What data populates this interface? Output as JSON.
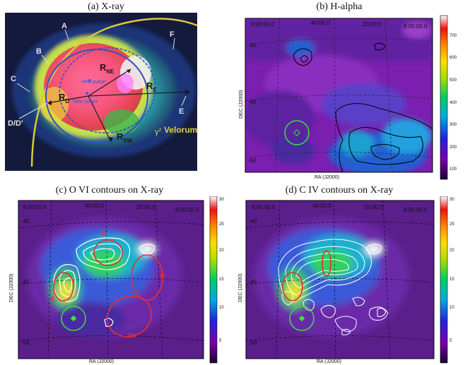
{
  "panels": {
    "a": {
      "title": "(a) X-ray",
      "labels": {
        "A": "A",
        "B": "B",
        "C": "C",
        "F": "F",
        "E": "E",
        "DD": "D/D'",
        "RNE": "R",
        "RNE_sub": "NE",
        "RD": "R",
        "RD_sub": "D",
        "RE": "R",
        "RE_sub": "E",
        "RSW": "R",
        "RSW_sub": "SW",
        "pulsar": "Vela pulsar",
        "center": "Vela center",
        "gamma": "γ",
        "gamma_sup": "2",
        "velorum": "Velorum"
      }
    },
    "b": {
      "title": "(b) H-alpha",
      "ra_ticks": [
        "9:00:00.0",
        "40:00.0",
        "20:00.0",
        "8:00:00.0"
      ],
      "dec_ticks": [
        "-40",
        "-45",
        "-50"
      ],
      "xlabel": "RA (J2000)",
      "ylabel": "DEC (J2000)",
      "colorbar_ticks": [
        "700",
        "600",
        "500",
        "400",
        "300",
        "200",
        "100"
      ]
    },
    "c": {
      "title": "(c) O VI contours on X-ray",
      "ra_ticks": [
        "9:00:00.0",
        "40:00.0",
        "20:00.0",
        "8:00:00.0"
      ],
      "dec_ticks": [
        "-40",
        "-45",
        "-50"
      ],
      "xlabel": "RA (J2000)",
      "ylabel": "DEC (J2000)",
      "region_labels": {
        "N": "N",
        "W": "W",
        "E": "E",
        "SW": "SW"
      },
      "colorbar_ticks": [
        "30",
        "25",
        "20",
        "15",
        "10",
        "5"
      ]
    },
    "d": {
      "title": "(d) C IV contours on X-ray",
      "ra_ticks": [
        "9:00:00.0",
        "40:00.0",
        "20:00.0",
        "8:00:00.0"
      ],
      "dec_ticks": [
        "-40",
        "-45",
        "-50"
      ],
      "xlabel": "RA (J2000)",
      "ylabel": "DEC (J2000)",
      "colorbar_ticks": [
        "30",
        "25",
        "20",
        "15",
        "10",
        "5"
      ]
    }
  },
  "colors": {
    "background": "#ffffff",
    "xray_rim": "#d9c93a",
    "ellipse_red": "#e53030",
    "circle_green": "#39e339",
    "contour_white": "#ffffff",
    "contour_black": "#000000"
  }
}
